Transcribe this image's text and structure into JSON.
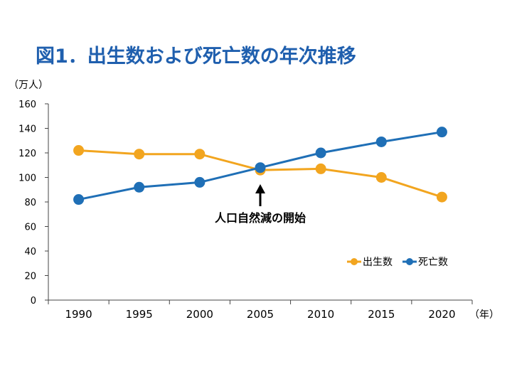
{
  "title": "図1．出生数および死亡数の年次推移",
  "colors": {
    "title": "#1f5fae",
    "births": "#f2a51f",
    "deaths": "#1f6fb6"
  },
  "chart_data": {
    "type": "line",
    "title": "図1．出生数および死亡数の年次推移",
    "ylabel": "（万人）",
    "xlabel": "（年）",
    "x": [
      "1990",
      "1995",
      "2000",
      "2005",
      "2010",
      "2015",
      "2020"
    ],
    "ylim": [
      0,
      160
    ],
    "yticks": [
      "0",
      "20",
      "40",
      "60",
      "80",
      "100",
      "120",
      "140",
      "160"
    ],
    "grid": false,
    "legend_position": "bottom-right",
    "series": [
      {
        "name": "出生数",
        "color": "#f2a51f",
        "values": [
          122,
          119,
          119,
          106,
          107,
          100,
          84
        ]
      },
      {
        "name": "死亡数",
        "color": "#1f6fb6",
        "values": [
          82,
          92,
          96,
          108,
          120,
          129,
          137
        ]
      }
    ],
    "annotation": {
      "text": "人口自然減の開始",
      "x": "2005"
    }
  }
}
